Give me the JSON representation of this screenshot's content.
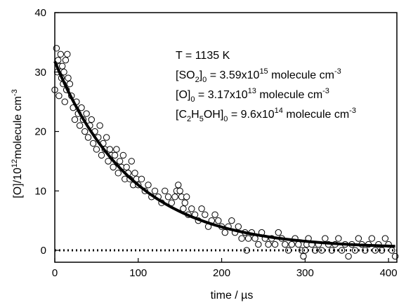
{
  "chart_data": {
    "type": "scatter",
    "xlabel_prefix": "time / ",
    "xlabel_unit": "µs",
    "ylabel_parts": [
      "[O]/10",
      "12",
      "molecule cm",
      "-3"
    ],
    "xlim": [
      0,
      410
    ],
    "ylim": [
      -2,
      40
    ],
    "x_ticks": [
      0,
      100,
      200,
      300,
      400
    ],
    "y_ticks": [
      0,
      10,
      20,
      30,
      40
    ],
    "grid": false,
    "annotations": {
      "temperature": "T = 1135 K",
      "so2": {
        "species": "[SO",
        "sub": "2",
        "close": "]",
        "sub0": "0",
        "value": " = 3.59x10",
        "exp": "15",
        "unit": " molecule cm",
        "unit_exp": "-3"
      },
      "o": {
        "species": "[O]",
        "sub0": "0",
        "value": " = 3.17x10",
        "exp": "13",
        "unit": " molecule cm",
        "unit_exp": "-3"
      },
      "c2h5oh": {
        "species_parts": [
          "[C",
          "2",
          "H",
          "5",
          "OH]"
        ],
        "sub0": "0",
        "value": " = 9.6x10",
        "exp": "14",
        "unit": " molecule cm",
        "unit_exp": "-3"
      }
    },
    "series": [
      {
        "type": "scatter",
        "marker": "open-circle",
        "x": [
          0,
          2,
          3,
          4,
          5,
          6,
          7,
          8,
          9,
          10,
          11,
          12,
          13,
          14,
          15,
          16,
          18,
          20,
          22,
          24,
          26,
          28,
          30,
          32,
          34,
          36,
          38,
          40,
          42,
          44,
          46,
          48,
          50,
          52,
          54,
          56,
          58,
          60,
          62,
          64,
          66,
          68,
          70,
          72,
          74,
          76,
          78,
          80,
          82,
          84,
          86,
          88,
          90,
          92,
          94,
          96,
          98,
          100,
          104,
          108,
          112,
          116,
          120,
          124,
          128,
          132,
          136,
          140,
          144,
          146,
          148,
          150,
          152,
          154,
          156,
          158,
          160,
          164,
          168,
          172,
          176,
          180,
          184,
          188,
          192,
          196,
          200,
          204,
          208,
          212,
          216,
          220,
          224,
          228,
          230,
          232,
          236,
          240,
          244,
          248,
          252,
          256,
          260,
          264,
          268,
          272,
          276,
          280,
          284,
          288,
          292,
          296,
          298,
          300,
          302,
          304,
          308,
          312,
          316,
          320,
          324,
          328,
          332,
          336,
          340,
          344,
          348,
          352,
          356,
          360,
          364,
          368,
          372,
          376,
          380,
          384,
          388,
          392,
          396,
          400,
          404,
          408
        ],
        "y": [
          27,
          34,
          30,
          32,
          26,
          31,
          33,
          29,
          31,
          28,
          30,
          25,
          32,
          27,
          33,
          29,
          28,
          26,
          24,
          22,
          25,
          23,
          21,
          24,
          22,
          20,
          23,
          19,
          21,
          22,
          18,
          20,
          17,
          19,
          21,
          16,
          18,
          17,
          19,
          15,
          17,
          16,
          14,
          16,
          17,
          13,
          15,
          14,
          16,
          12,
          14,
          13,
          12,
          15,
          11,
          13,
          12,
          11,
          12,
          10,
          11,
          9,
          10,
          9,
          8,
          10,
          9,
          8,
          9,
          10,
          11,
          10,
          9,
          7,
          8,
          9,
          6,
          7,
          6,
          5,
          7,
          6,
          4,
          5,
          6,
          5,
          4,
          3,
          4,
          5,
          3,
          4,
          2,
          3,
          0,
          2,
          3,
          2,
          1,
          3,
          2,
          1,
          2,
          1,
          3,
          2,
          1,
          0,
          1,
          2,
          1,
          0,
          -1,
          0,
          1,
          2,
          1,
          0,
          1,
          0,
          2,
          1,
          0,
          1,
          2,
          0,
          1,
          -1,
          1,
          0,
          2,
          1,
          0,
          1,
          2,
          0,
          1,
          0,
          2,
          1,
          0,
          -1
        ],
        "fit_exponential": {
          "A": 31.5,
          "k_per_us": 0.0108,
          "offset": 0.3
        }
      },
      {
        "type": "line",
        "style": "dotted",
        "y_constant": 0
      }
    ]
  }
}
